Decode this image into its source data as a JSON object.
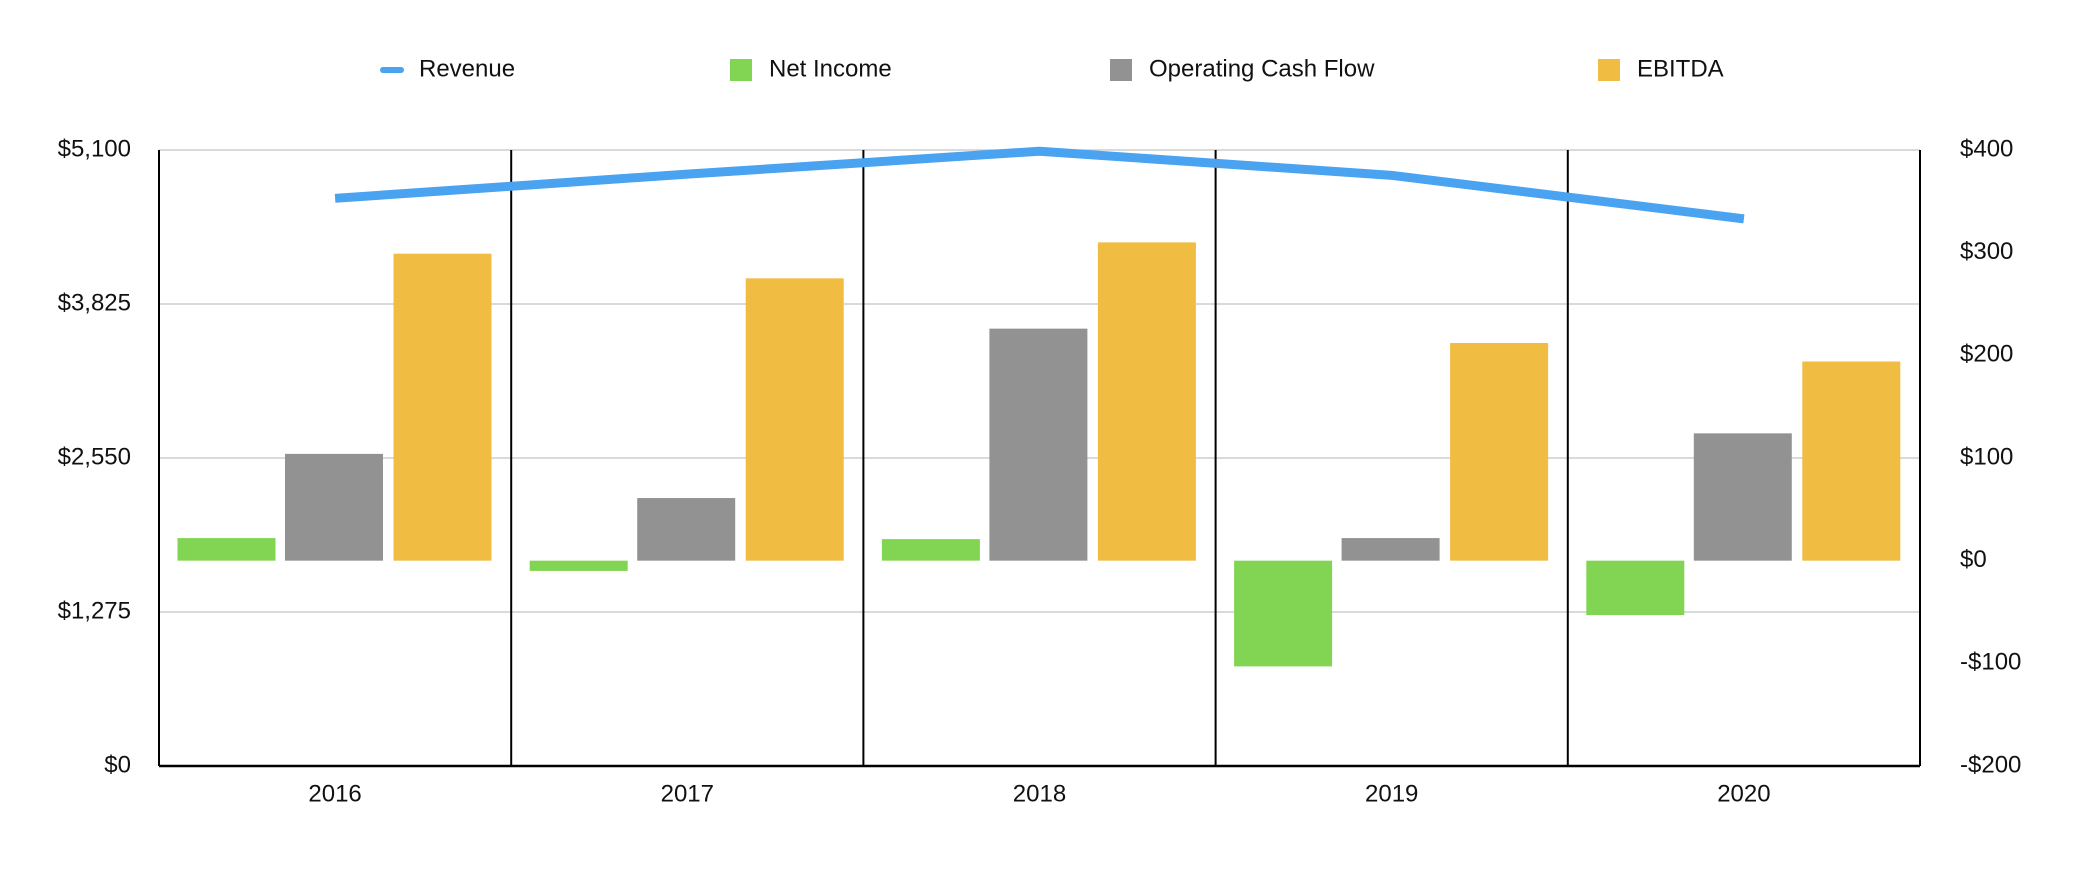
{
  "chart_data": {
    "type": "bar",
    "categories": [
      "2016",
      "2017",
      "2018",
      "2019",
      "2020"
    ],
    "series": [
      {
        "name": "Revenue",
        "type": "line",
        "color": "#4aa3f0",
        "values": [
          4700,
          4900,
          5090,
          4890,
          4530
        ]
      },
      {
        "name": "Net Income",
        "color": "#82d552",
        "axis": "y2",
        "values": [
          22,
          -10,
          21,
          -103,
          -53
        ]
      },
      {
        "name": "Operating Cash Flow",
        "color": "#929292",
        "axis": "y2",
        "values": [
          104,
          61,
          226,
          22,
          124
        ]
      },
      {
        "name": "EBITDA",
        "color": "#f0bc42",
        "axis": "y2",
        "values": [
          299,
          275,
          310,
          212,
          194
        ]
      }
    ],
    "ylim": [
      0,
      5100
    ],
    "yticks": [
      {
        "value": 0,
        "label": "$0"
      },
      {
        "value": 1275,
        "label": "$1,275"
      },
      {
        "value": 2550,
        "label": "$2,550"
      },
      {
        "value": 3825,
        "label": "$3,825"
      },
      {
        "value": 5100,
        "label": "$5,100"
      }
    ],
    "y2lim": [
      -200,
      400
    ],
    "y2ticks": [
      {
        "value": -200,
        "label": "-$200"
      },
      {
        "value": -100,
        "label": "-$100"
      },
      {
        "value": 0,
        "label": "$0"
      },
      {
        "value": 100,
        "label": "$100"
      },
      {
        "value": 200,
        "label": "$200"
      },
      {
        "value": 300,
        "label": "$300"
      },
      {
        "value": 400,
        "label": "$400"
      }
    ],
    "grid": true,
    "legend": "top"
  }
}
